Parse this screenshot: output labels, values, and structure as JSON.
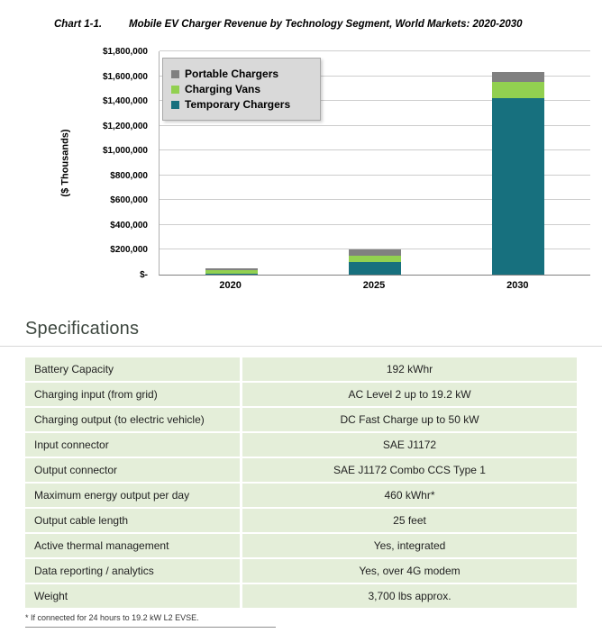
{
  "chart": {
    "title_prefix": "Chart 1-1.",
    "title": "Mobile EV Charger Revenue by Technology Segment, World Markets: 2020-2030"
  },
  "chart_data": {
    "type": "bar",
    "stacked": true,
    "title": "Chart 1-1.  Mobile EV Charger Revenue by Technology Segment, World Markets: 2020-2030",
    "categories": [
      "2020",
      "2025",
      "2030"
    ],
    "series": [
      {
        "name": "Temporary Chargers",
        "color": "#17707E",
        "values": [
          10000,
          105000,
          1420000
        ]
      },
      {
        "name": "Charging Vans",
        "color": "#92D050",
        "values": [
          30000,
          50000,
          130000
        ]
      },
      {
        "name": "Portable Chargers",
        "color": "#808080",
        "values": [
          8000,
          45000,
          85000
        ]
      }
    ],
    "legend_order": [
      "Portable Chargers",
      "Charging Vans",
      "Temporary Chargers"
    ],
    "legend_position": "top-left",
    "grid": true,
    "xlabel": "",
    "ylabel": "($ Thousands)",
    "ylim": [
      0,
      1800000
    ],
    "ytick_step": 200000,
    "ytick_labels": [
      "$-",
      "$200,000",
      "$400,000",
      "$600,000",
      "$800,000",
      "$1,000,000",
      "$1,200,000",
      "$1,400,000",
      "$1,600,000",
      "$1,800,000"
    ]
  },
  "specs": {
    "heading": "Specifications",
    "rows": [
      {
        "label": "Battery Capacity",
        "value": "192 kWhr"
      },
      {
        "label": "Charging input (from grid)",
        "value": "AC Level 2 up to 19.2 kW"
      },
      {
        "label": "Charging output (to electric vehicle)",
        "value": "DC Fast Charge up to 50 kW"
      },
      {
        "label": "Input connector",
        "value": "SAE J1172"
      },
      {
        "label": "Output connector",
        "value": "SAE J1172 Combo CCS Type 1"
      },
      {
        "label": "Maximum energy output per day",
        "value": "460 kWhr*"
      },
      {
        "label": "Output cable length",
        "value": "25 feet"
      },
      {
        "label": "Active thermal management",
        "value": "Yes, integrated"
      },
      {
        "label": "Data reporting / analytics",
        "value": "Yes, over 4G modem"
      },
      {
        "label": "Weight",
        "value": "3,700 lbs approx."
      }
    ],
    "footnote": "* If connected for 24 hours to 19.2 kW L2 EVSE."
  }
}
